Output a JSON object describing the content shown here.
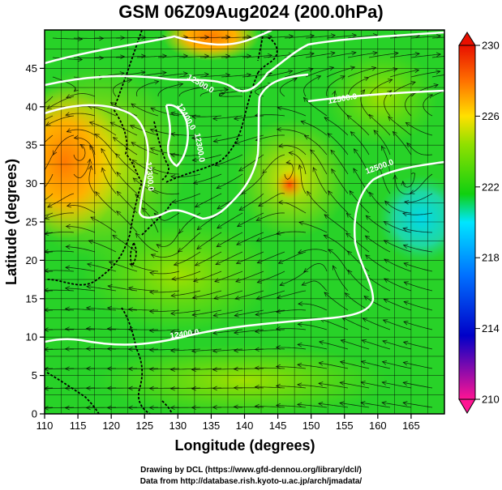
{
  "title": "GSM 06Z09Aug2024 (200.0hPa)",
  "x_axis": {
    "label": "Longitude (degrees)",
    "ticks": [
      "110",
      "115",
      "120",
      "125",
      "130",
      "135",
      "140",
      "145",
      "150",
      "155",
      "160",
      "165"
    ]
  },
  "y_axis": {
    "label": "Latitude (degrees)",
    "ticks": [
      "0",
      "5",
      "10",
      "15",
      "20",
      "25",
      "30",
      "35",
      "40",
      "45"
    ]
  },
  "colorbar": {
    "ticks": [
      "210",
      "214",
      "218",
      "222",
      "226",
      "230"
    ]
  },
  "contours": {
    "labels": [
      "12500.0",
      "12400.0",
      "12300.0",
      "12500.0",
      "12300.0",
      "12400.0",
      "12500.0"
    ]
  },
  "footer": {
    "line1": "Drawing by DCL (https://www.gfd-dennou.org/library/dcl/)",
    "line2": "Data from http://database.rish.kyoto-u.ac.jp/arch/jmadata/"
  },
  "chart_data": {
    "type": "heatmap",
    "variable": "temperature (K) with geopotential height contours and wind streamlines",
    "xlim": [
      110,
      170
    ],
    "ylim": [
      0,
      50
    ],
    "color_range": [
      210,
      230
    ],
    "colormap": [
      "#ff1493",
      "#0000c8",
      "#00e6ff",
      "#10d010",
      "#ffe000",
      "#ff7000",
      "#e81000"
    ],
    "warm_centers": [
      {
        "lon": 111,
        "lat": 35,
        "value": 227
      },
      {
        "lon": 131,
        "lat": 49,
        "value": 228
      },
      {
        "lon": 146,
        "lat": 32,
        "value": 226
      }
    ],
    "cool_centers": [
      {
        "lon": 164,
        "lat": 29,
        "value": 219
      }
    ]
  }
}
